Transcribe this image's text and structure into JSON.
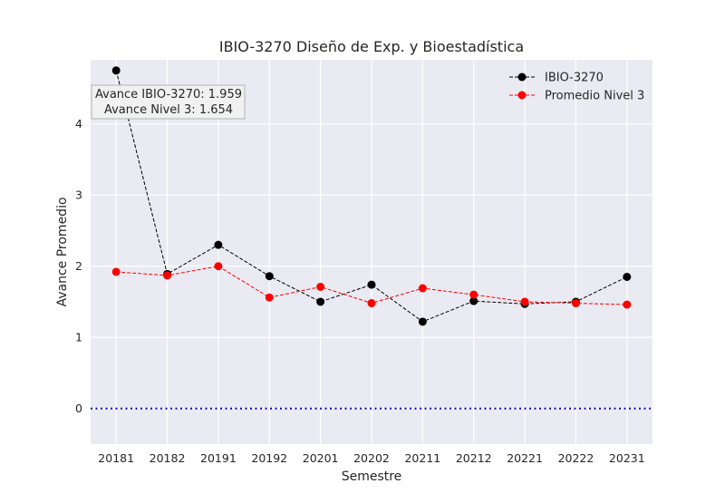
{
  "chart_data": {
    "type": "line",
    "title": "IBIO-3270 Diseño de Exp. y Bioestadística",
    "xlabel": "Semestre",
    "ylabel": "Avance Promedio",
    "categories": [
      "20181",
      "20182",
      "20191",
      "20192",
      "20201",
      "20202",
      "20211",
      "20212",
      "20221",
      "20222",
      "20231"
    ],
    "ylim": [
      -0.5,
      4.9
    ],
    "yticks": [
      0,
      1,
      2,
      3,
      4
    ],
    "grid": true,
    "legend_position": "top-right",
    "series": [
      {
        "name": "IBIO-3270",
        "values": [
          4.75,
          1.89,
          2.3,
          1.86,
          1.5,
          1.74,
          1.22,
          1.51,
          1.47,
          1.5,
          1.85
        ],
        "color": "#000000",
        "marker": "circle",
        "line_style": "dashed"
      },
      {
        "name": "Promedio Nivel 3",
        "values": [
          1.92,
          1.87,
          2.0,
          1.56,
          1.71,
          1.48,
          1.69,
          1.6,
          1.5,
          1.48,
          1.46
        ],
        "color": "#ff0000",
        "marker": "circle",
        "line_style": "dashed"
      }
    ],
    "reference_line": {
      "y": 0,
      "color": "#0000cc",
      "line_style": "dotted"
    },
    "annotation": {
      "line1": "Avance IBIO-3270: 1.959",
      "line2": "Avance Nivel 3: 1.654"
    },
    "colors": {
      "plot_background": "#eaeaf2",
      "grid": "#ffffff"
    }
  }
}
